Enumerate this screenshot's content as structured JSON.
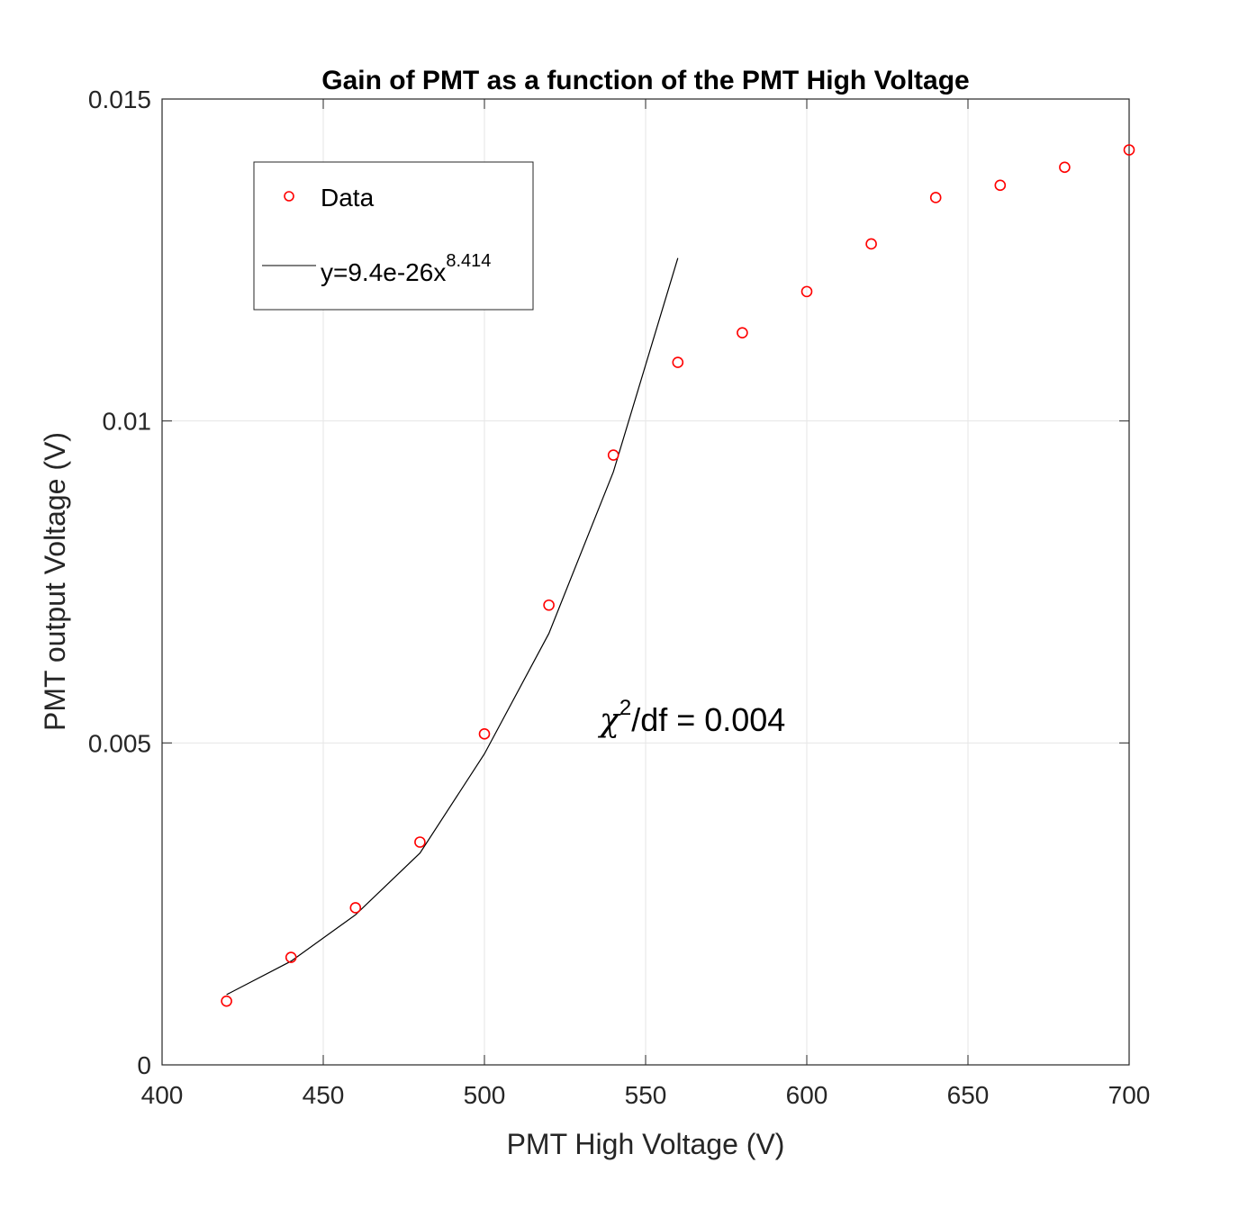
{
  "chart_data": {
    "type": "scatter",
    "title": "Gain of PMT as a function of the PMT High Voltage",
    "xlabel": "PMT High Voltage (V)",
    "ylabel": "PMT output Voltage (V)",
    "xlim": [
      400,
      700
    ],
    "ylim": [
      0,
      0.015
    ],
    "x_ticks": [
      400,
      450,
      500,
      550,
      600,
      650,
      700
    ],
    "x_tick_labels": [
      "400",
      "450",
      "500",
      "550",
      "600",
      "650",
      "700"
    ],
    "y_ticks": [
      0,
      0.005,
      0.01,
      0.015
    ],
    "y_tick_labels": [
      "0",
      "0.005",
      "0.01",
      "0.015"
    ],
    "grid": true,
    "legend_position": "top-left",
    "series": [
      {
        "name": "Data",
        "kind": "scatter",
        "marker": "circle",
        "color": "#ff0000",
        "x": [
          420,
          440,
          460,
          480,
          500,
          520,
          540,
          560,
          580,
          600,
          620,
          640,
          660,
          680,
          700
        ],
        "y": [
          0.00099,
          0.00167,
          0.00244,
          0.00346,
          0.00514,
          0.00714,
          0.00947,
          0.01091,
          0.01137,
          0.01201,
          0.01275,
          0.01347,
          0.01366,
          0.01394,
          0.01421
        ]
      },
      {
        "name_prefix": "y=9.4e-26x",
        "name_exponent": "8.414",
        "kind": "line",
        "color": "#000000",
        "x": [
          420,
          440,
          460,
          480,
          500,
          520,
          540,
          560
        ],
        "y": [
          0.00109,
          0.00161,
          0.00233,
          0.00329,
          0.00483,
          0.0067,
          0.00921,
          0.01253
        ]
      }
    ],
    "annotation": {
      "symbol": "χ",
      "exponent": "2",
      "text": "/df = 0.004"
    }
  },
  "colors": {
    "data_marker": "#ff0000",
    "fit_line": "#000000",
    "grid": "#e6e6e6",
    "axis": "#262626"
  }
}
